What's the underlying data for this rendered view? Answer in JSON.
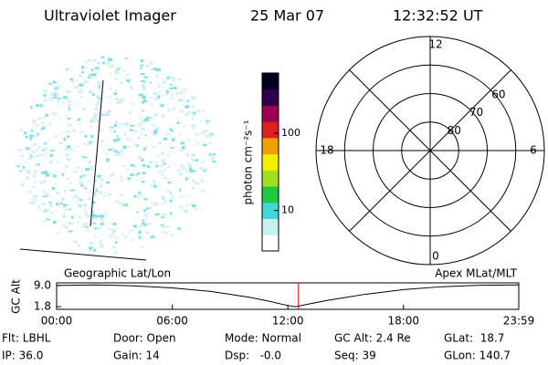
{
  "header": {
    "title": "Ultraviolet Imager",
    "date": "25 Mar 07",
    "time": "12:32:52 UT"
  },
  "chart_data": [
    {
      "type": "colorbar",
      "label": "photon cm⁻²s⁻¹",
      "log": true,
      "ylim": [
        3,
        600
      ],
      "yticks": [
        10,
        100
      ],
      "colors": [
        "#ffffff",
        "#c8f0f0",
        "#40d8d8",
        "#20c840",
        "#a0e020",
        "#f0f000",
        "#f0a000",
        "#e02020",
        "#a00050",
        "#300050",
        "#000020"
      ]
    },
    {
      "type": "polar",
      "rlim": [
        90,
        50
      ],
      "rticks": [
        60,
        70,
        80
      ],
      "thetaticks": [
        0,
        6,
        12,
        18
      ]
    },
    {
      "type": "line",
      "title_left": "Geographic Lat/Lon",
      "title_right": "Apex MLat/MLT",
      "ylabel": "GC Alt",
      "x": [
        0,
        2,
        4,
        6,
        8,
        10,
        11,
        12,
        12.4,
        13,
        14,
        16,
        18,
        20,
        22,
        23.983
      ],
      "values": [
        9.0,
        9.2,
        8.9,
        8.2,
        7.0,
        5.0,
        3.7,
        2.2,
        1.8,
        2.6,
        3.9,
        6.0,
        7.6,
        8.6,
        9.1,
        9.2
      ],
      "color": "#000000",
      "marker_x": 12.548,
      "marker_color": "#e00000",
      "xlim": [
        0,
        23.983
      ],
      "ylim": [
        0.9,
        9.9
      ],
      "xticks": [
        {
          "value": 0,
          "label": "00:00"
        },
        {
          "value": 6,
          "label": "06:00"
        },
        {
          "value": 12,
          "label": "12:00"
        },
        {
          "value": 18,
          "label": "18:00"
        },
        {
          "value": 23.983,
          "label": "23:59"
        }
      ],
      "yticks": [
        {
          "value": 9,
          "label": "9.0"
        },
        1.8
      ]
    }
  ],
  "footer": {
    "rows": [
      [
        "Flt: LBHL",
        "Door: Open",
        "Mode: Normal",
        "GC Alt: 2.4 Re",
        "GLat:  18.7"
      ],
      [
        "IP: 36.0",
        "Gain: 14",
        "Dsp:   -0.0",
        "Seq: 39",
        "GLon: 140.7"
      ]
    ]
  }
}
